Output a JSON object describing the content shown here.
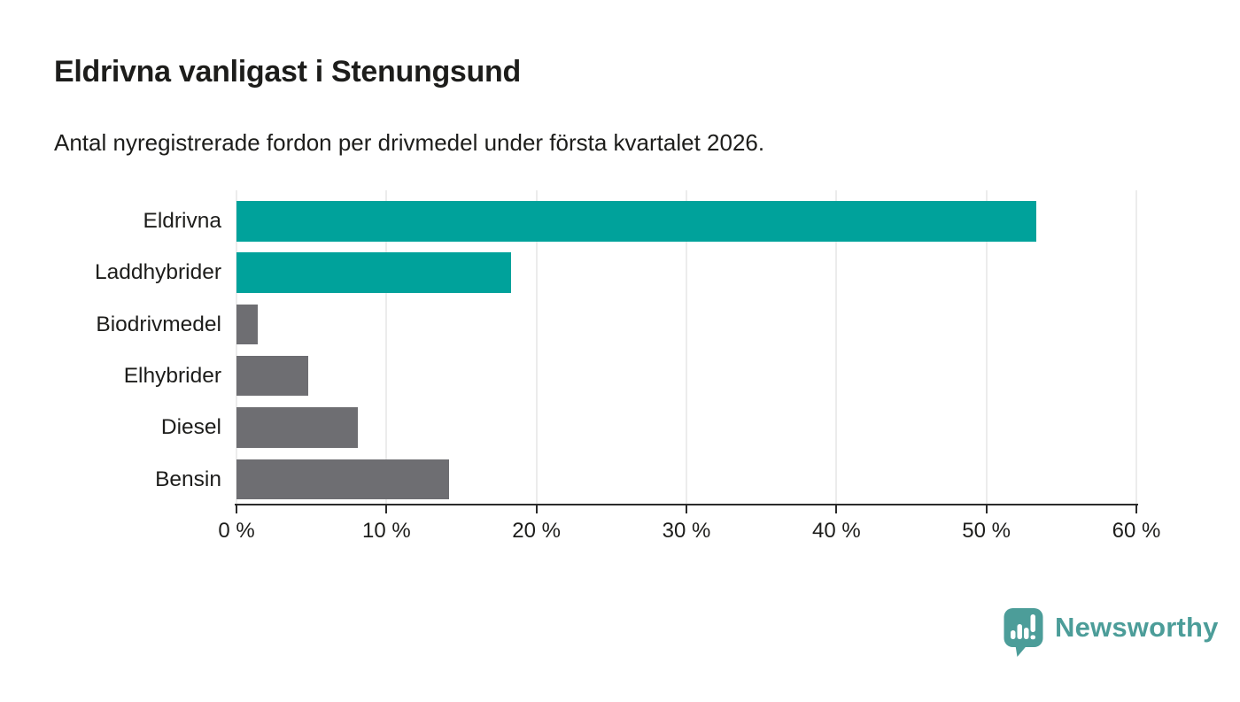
{
  "header": {
    "title": "Eldrivna vanligast i Stenungsund",
    "subtitle": "Antal nyregistrerade fordon per drivmedel under första kvartalet 2026."
  },
  "branding": {
    "logo_text": "Newsworthy",
    "logo_color": "#4c9d99",
    "logo_icon": "speech-bubble-bar-chart-icon"
  },
  "colors": {
    "highlight_bar": "#00a29b",
    "default_bar": "#6e6e72",
    "axis_line": "#2b2b2b",
    "gridline": "#dadada",
    "text": "#1d1d1b",
    "background": "#ffffff"
  },
  "chart_data": {
    "type": "bar",
    "orientation": "horizontal",
    "title": "Eldrivna vanligast i Stenungsund",
    "subtitle": "Antal nyregistrerade fordon per drivmedel under första kvartalet 2026.",
    "categories": [
      "Eldrivna",
      "Laddhybrider",
      "Biodrivmedel",
      "Elhybrider",
      "Diesel",
      "Bensin"
    ],
    "values": [
      53.3,
      18.3,
      1.4,
      4.8,
      8.1,
      14.2
    ],
    "unit": "%",
    "bar_colors": [
      "#00a29b",
      "#00a29b",
      "#6e6e72",
      "#6e6e72",
      "#6e6e72",
      "#6e6e72"
    ],
    "xlim": [
      0,
      60
    ],
    "x_ticks": [
      0,
      10,
      20,
      30,
      40,
      50,
      60
    ],
    "x_tick_labels": [
      "0 %",
      "10 %",
      "20 %",
      "30 %",
      "40 %",
      "50 %",
      "60 %"
    ],
    "grid": "vertical-gridlines",
    "legend": "none",
    "xlabel": "",
    "ylabel": ""
  }
}
